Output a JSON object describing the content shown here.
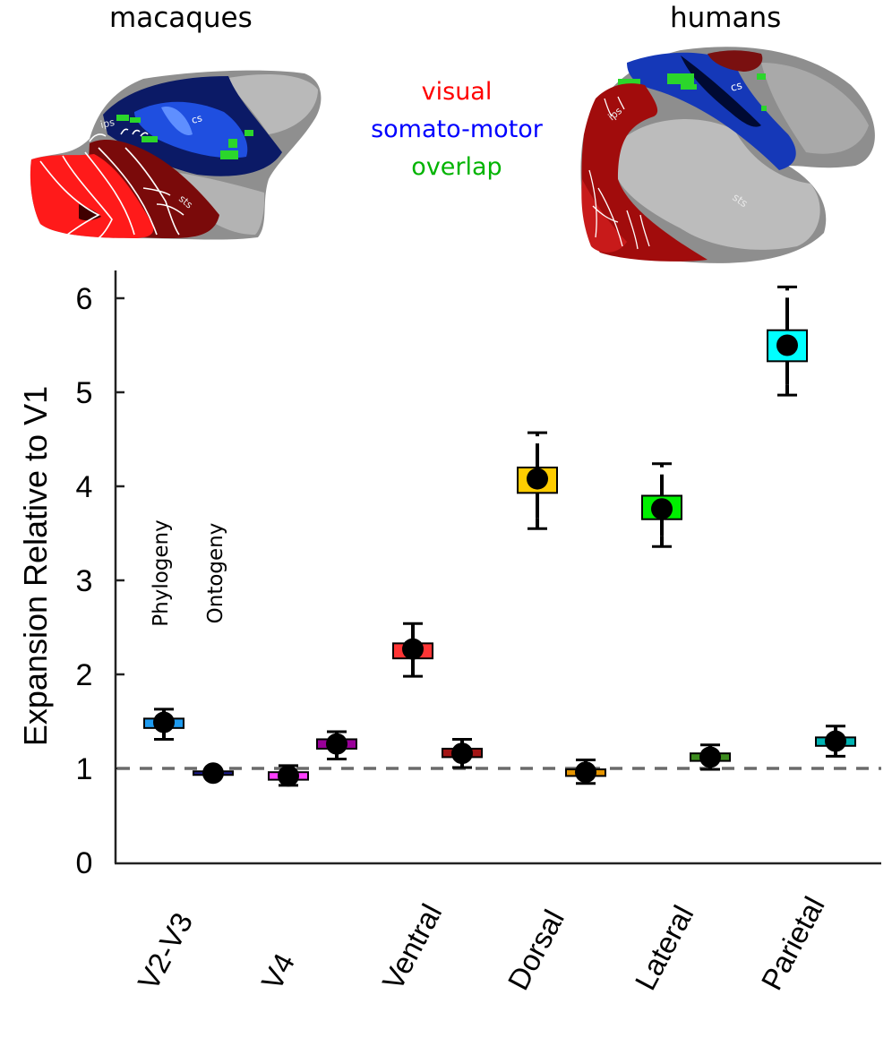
{
  "figure": {
    "species_titles": {
      "left": "macaques",
      "right": "humans"
    },
    "legend": [
      {
        "label": "visual",
        "color": "#ff0000"
      },
      {
        "label": "somato-motor",
        "color": "#0000ff"
      },
      {
        "label": "overlap",
        "color": "#00b400"
      }
    ],
    "brain_annotations": {
      "macaque": [
        "ips",
        "cs",
        "sts"
      ],
      "human": [
        "ips",
        "cs",
        "sts"
      ]
    },
    "brain_colors": {
      "visual": "#ff0000",
      "visual_dark": "#8b0000",
      "somato_motor": "#1a3fd6",
      "overlap": "#2bd62b",
      "cortex_light": "#bdbdbd",
      "cortex_dark": "#808080"
    }
  },
  "chart_data": {
    "type": "scatter",
    "title": "",
    "xlabel": "",
    "ylabel": "Expansion Relative to V1",
    "ylim": [
      0,
      6.3
    ],
    "yticks": [
      0,
      1,
      2,
      3,
      4,
      5,
      6
    ],
    "grid": false,
    "reference_line": {
      "y": 1,
      "style": "dashed",
      "color": "#666666"
    },
    "categories": [
      "V2-V3",
      "V4",
      "Ventral",
      "Dorsal",
      "Lateral",
      "Parietal"
    ],
    "series_labels": [
      "Phylogeny",
      "Ontogeny"
    ],
    "series": [
      {
        "name": "Phylogeny",
        "values": [
          1.49,
          0.92,
          2.27,
          4.08,
          3.76,
          5.5
        ],
        "err_low": [
          1.31,
          0.82,
          1.98,
          3.55,
          3.36,
          4.97
        ],
        "err_high": [
          1.63,
          1.03,
          2.54,
          4.57,
          4.24,
          6.12
        ],
        "box_low": [
          1.43,
          0.88,
          2.17,
          3.93,
          3.65,
          5.33
        ],
        "box_high": [
          1.53,
          0.96,
          2.33,
          4.2,
          3.9,
          5.66
        ],
        "colors": [
          "#1e9bf0",
          "#ff40ff",
          "#ff3535",
          "#ffcc00",
          "#00f000",
          "#00ffff"
        ]
      },
      {
        "name": "Ontogeny",
        "values": [
          0.95,
          1.26,
          1.16,
          0.96,
          1.12,
          1.29
        ],
        "err_low": [
          0.92,
          1.1,
          1.01,
          0.84,
          0.99,
          1.13
        ],
        "err_high": [
          0.98,
          1.39,
          1.31,
          1.09,
          1.25,
          1.45
        ],
        "box_low": [
          0.94,
          1.21,
          1.12,
          0.92,
          1.08,
          1.24
        ],
        "box_high": [
          0.96,
          1.31,
          1.21,
          0.99,
          1.16,
          1.33
        ],
        "colors": [
          "#1a1a8c",
          "#990099",
          "#a31515",
          "#e69500",
          "#3d8c1f",
          "#00b3b3"
        ]
      }
    ]
  }
}
